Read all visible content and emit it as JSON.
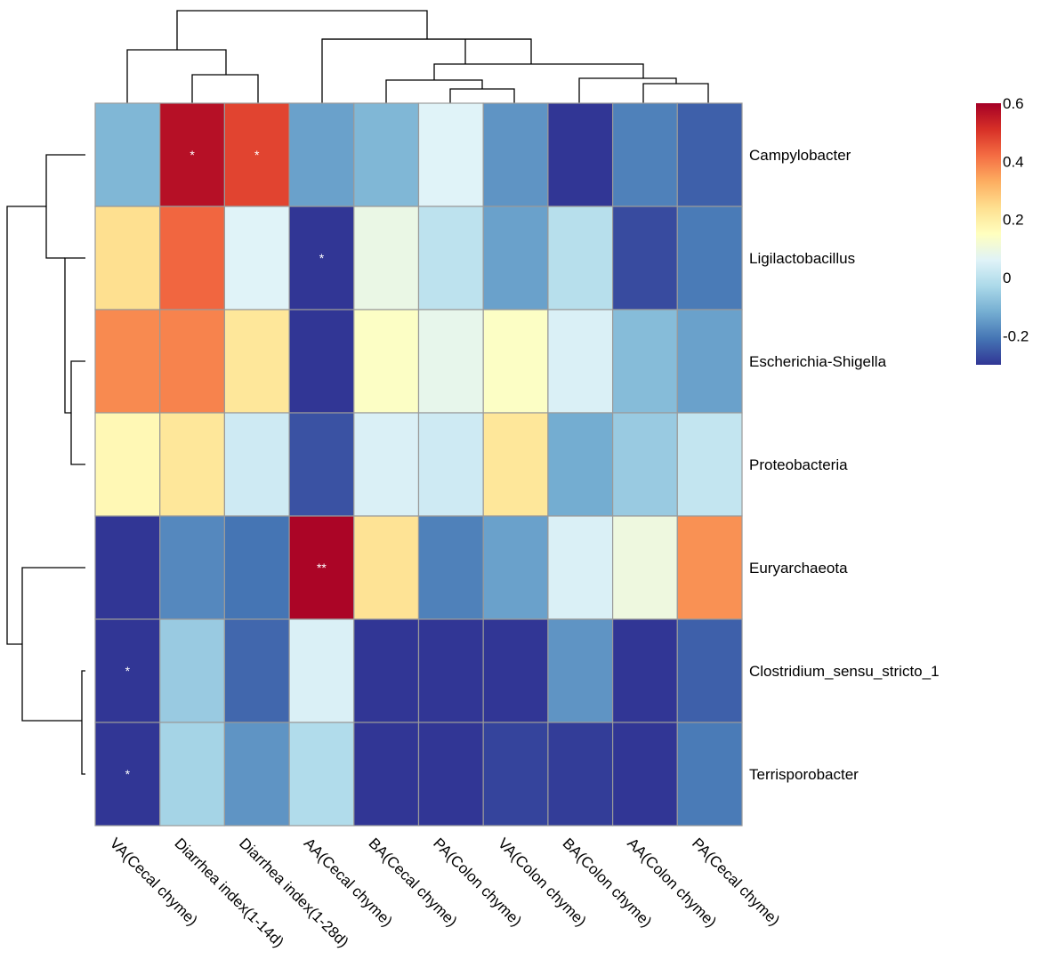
{
  "chart_data": {
    "type": "heatmap",
    "title": "",
    "rows": [
      "Campylobacter",
      "Ligilactobacillus",
      "Escherichia-Shigella",
      "Proteobacteria",
      "Euryarchaeota",
      "Clostridium_sensu_stricto_1",
      "Terrisporobacter"
    ],
    "columns": [
      "VA(Cecal chyme)",
      "Diarrhea index(1-14d)",
      "Diarrhea index(1-28d)",
      "AA(Cecal chyme)",
      "BA(Cecal chyme)",
      "PA(Colon chyme)",
      "VA(Colon chyme)",
      "BA(Colon chyme)",
      "AA(Colon chyme)",
      "PA(Cecal chyme)"
    ],
    "values": [
      [
        -0.1,
        0.57,
        0.48,
        -0.14,
        -0.1,
        0.06,
        -0.16,
        -0.3,
        -0.19,
        -0.24
      ],
      [
        0.24,
        0.43,
        0.06,
        -0.3,
        0.09,
        0.0,
        -0.14,
        -0.01,
        -0.27,
        -0.2
      ],
      [
        0.38,
        0.39,
        0.22,
        -0.3,
        0.14,
        0.08,
        0.14,
        0.05,
        -0.09,
        -0.14
      ],
      [
        0.17,
        0.22,
        0.03,
        -0.26,
        0.05,
        0.03,
        0.22,
        -0.12,
        -0.06,
        0.01
      ],
      [
        -0.3,
        -0.18,
        -0.21,
        0.59,
        0.23,
        -0.19,
        -0.14,
        0.05,
        0.1,
        0.37
      ],
      [
        -0.3,
        -0.06,
        -0.23,
        0.05,
        -0.3,
        -0.3,
        -0.3,
        -0.16,
        -0.3,
        -0.24
      ],
      [
        -0.3,
        -0.04,
        -0.16,
        -0.02,
        -0.3,
        -0.3,
        -0.28,
        -0.29,
        -0.3,
        -0.2
      ]
    ],
    "significance": [
      [
        "",
        "*",
        "*",
        "",
        "",
        "",
        "",
        "",
        "",
        ""
      ],
      [
        "",
        "",
        "",
        "*",
        "",
        "",
        "",
        "",
        "",
        ""
      ],
      [
        "",
        "",
        "",
        "",
        "",
        "",
        "",
        "",
        "",
        ""
      ],
      [
        "",
        "",
        "",
        "",
        "",
        "",
        "",
        "",
        "",
        ""
      ],
      [
        "",
        "",
        "",
        "**",
        "",
        "",
        "",
        "",
        "",
        ""
      ],
      [
        "*",
        "",
        "",
        "",
        "",
        "",
        "",
        "",
        "",
        ""
      ],
      [
        "*",
        "",
        "",
        "",
        "",
        "",
        "",
        "",
        "",
        ""
      ]
    ],
    "colorbar": {
      "min": -0.3,
      "max": 0.6,
      "ticks": [
        0.6,
        0.4,
        0.2,
        0,
        -0.2
      ],
      "tick_labels": [
        "0.6",
        "0.4",
        "0.2",
        "0",
        "-0.2"
      ],
      "colors": [
        "#313695",
        "#4575b4",
        "#74add1",
        "#abd9e9",
        "#e0f3f8",
        "#ffffbf",
        "#fee090",
        "#fdae61",
        "#f46d43",
        "#d73027",
        "#a50026"
      ]
    },
    "row_dendrogram": true,
    "column_dendrogram": true
  }
}
